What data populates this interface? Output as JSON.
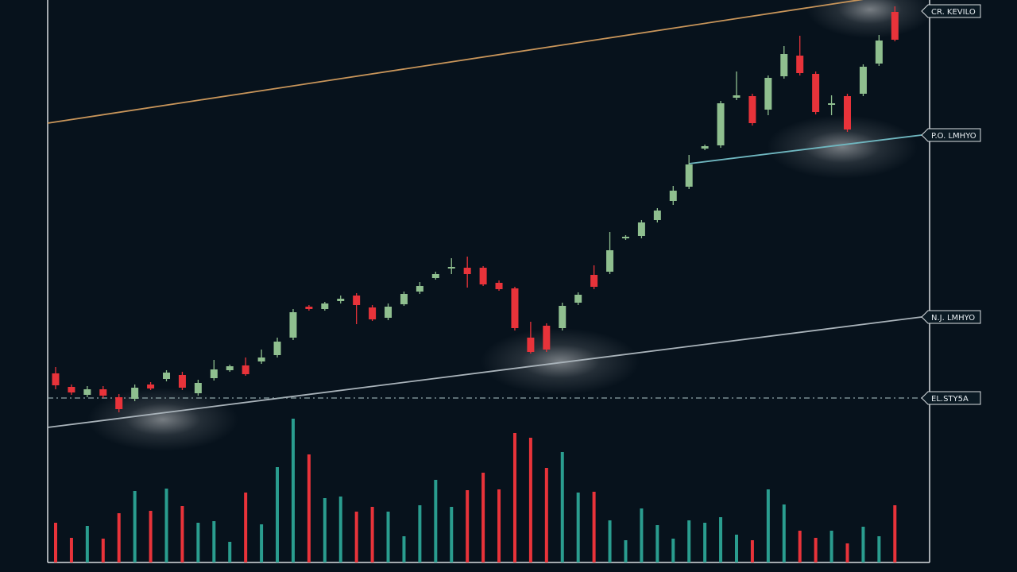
{
  "chart_data": {
    "type": "candlestick",
    "ylim": [
      0,
      720
    ],
    "up_color": "#8fbf8f",
    "down_color": "#e8333a",
    "open": [
      250,
      233,
      223,
      230,
      220,
      218,
      236,
      243,
      248,
      225,
      244,
      254,
      260,
      265,
      273,
      295,
      334,
      331,
      341,
      348,
      333,
      320,
      337,
      353,
      370,
      382,
      383,
      383,
      364,
      357,
      295,
      310,
      307,
      339,
      374,
      378,
      420,
      423,
      443,
      467,
      485,
      533,
      537,
      597,
      599,
      582,
      624,
      650,
      627,
      588,
      599,
      602,
      640,
      705
    ],
    "high": [
      258,
      236,
      234,
      234,
      224,
      236,
      239,
      254,
      252,
      242,
      267,
      261,
      270,
      280,
      295,
      331,
      336,
      340,
      348,
      351,
      336,
      338,
      353,
      365,
      378,
      395,
      397,
      385,
      367,
      359,
      315,
      313,
      339,
      352,
      386,
      428,
      424,
      443,
      458,
      486,
      525,
      538,
      593,
      630,
      602,
      625,
      662,
      675,
      630,
      600,
      602,
      639,
      676,
      712
    ],
    "low": [
      230,
      223,
      220,
      219,
      201,
      215,
      229,
      240,
      229,
      222,
      241,
      252,
      247,
      262,
      270,
      292,
      329,
      329,
      338,
      312,
      316,
      317,
      335,
      350,
      368,
      375,
      358,
      360,
      354,
      304,
      275,
      277,
      304,
      336,
      356,
      375,
      418,
      420,
      440,
      462,
      482,
      531,
      534,
      594,
      562,
      575,
      621,
      625,
      576,
      575,
      554,
      599,
      637,
      668
    ],
    "close": [
      235,
      226,
      230,
      222,
      205,
      232,
      231,
      251,
      232,
      238,
      255,
      259,
      249,
      270,
      290,
      327,
      331,
      338,
      344,
      336,
      318,
      334,
      350,
      360,
      375,
      384,
      375,
      362,
      356,
      307,
      277,
      280,
      335,
      349,
      359,
      405,
      422,
      440,
      455,
      480,
      513,
      536,
      590,
      600,
      565,
      622,
      652,
      628,
      579,
      590,
      557,
      636,
      669,
      670
    ],
    "volume": {
      "ylim": [
        0,
        200
      ],
      "up_color": "#2a9d8f",
      "down_color": "#e8333a",
      "values": [
        50,
        31,
        46,
        30,
        62,
        90,
        65,
        93,
        71,
        50,
        52,
        26,
        88,
        48,
        120,
        181,
        136,
        81,
        83,
        64,
        70,
        64,
        33,
        72,
        104,
        70,
        91,
        113,
        92,
        163,
        157,
        119,
        139,
        88,
        89,
        53,
        28,
        68,
        47,
        30,
        53,
        50,
        57,
        35,
        28,
        92,
        73,
        40,
        31,
        40,
        24,
        45,
        33,
        72
      ]
    },
    "levels": [
      {
        "label": "CR. KEVILO",
        "start_value": 565,
        "end_value": 732,
        "color": "#c8955a",
        "dashed": false
      },
      {
        "label": "P.O. LMHYO",
        "start_index": 40,
        "start_value": 514,
        "end_value": 550,
        "color": "#6fb7c0",
        "dashed": false
      },
      {
        "label": "N.J. LMHYO",
        "start_value": 182,
        "end_value": 321,
        "color": "#a9b3ba",
        "dashed": false
      },
      {
        "label": "EL.STY5A",
        "start_value": 219,
        "end_value": 219,
        "color": "#8fa6a8",
        "dashed": true
      }
    ]
  }
}
